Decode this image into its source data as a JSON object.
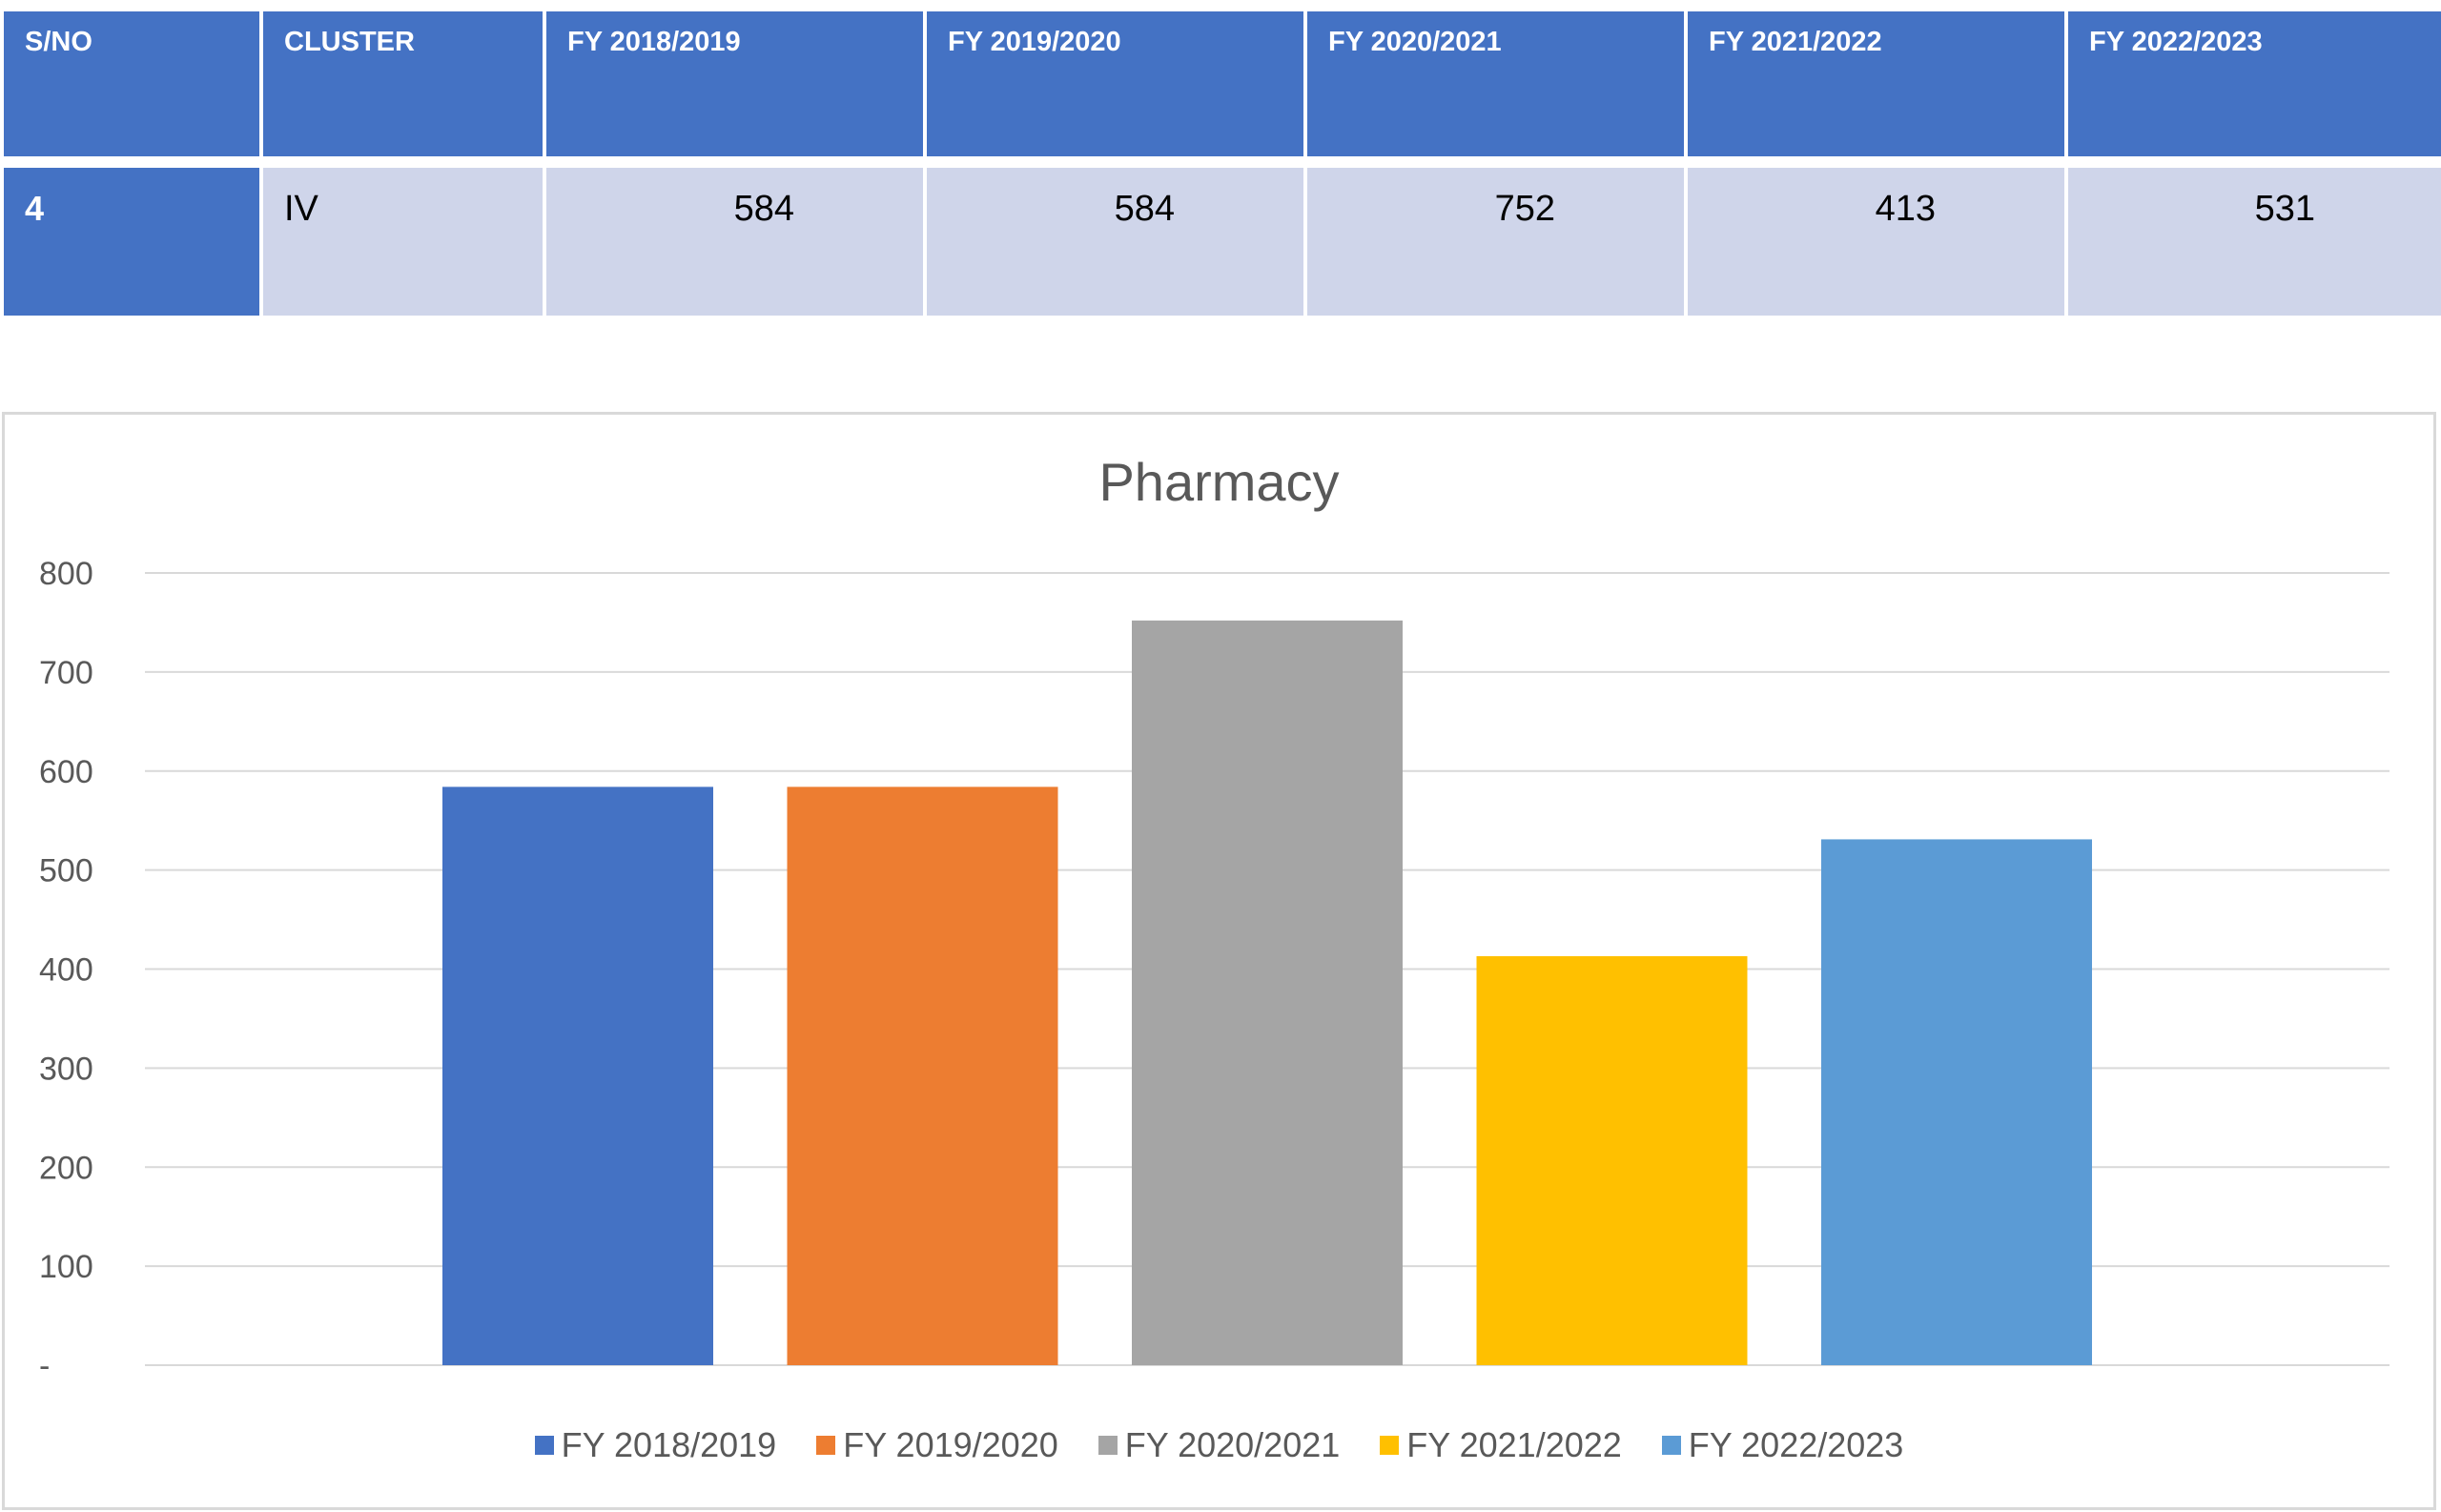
{
  "table": {
    "headers": [
      "S/NO",
      "CLUSTER",
      "FY 2018/2019",
      "FY 2019/2020",
      "FY 2020/2021",
      "FY 2021/2022",
      "FY 2022/2023"
    ],
    "row": {
      "sno": "4",
      "cluster": "IV",
      "values": [
        "584",
        "584",
        "752",
        "413",
        "531"
      ]
    }
  },
  "colors": {
    "header_bg": "#4472c4",
    "row_bg": "#cfd5ea",
    "series": [
      "#4472c4",
      "#ed7d31",
      "#a5a5a5",
      "#ffc000",
      "#5b9bd5"
    ]
  },
  "chart_data": {
    "type": "bar",
    "title": "Pharmacy",
    "series": [
      {
        "name": "FY 2018/2019",
        "values": [
          584
        ]
      },
      {
        "name": "FY 2019/2020",
        "values": [
          584
        ]
      },
      {
        "name": "FY 2020/2021",
        "values": [
          752
        ]
      },
      {
        "name": "FY 2021/2022",
        "values": [
          413
        ]
      },
      {
        "name": "FY 2022/2023",
        "values": [
          531
        ]
      }
    ],
    "categories": [
      ""
    ],
    "ylim": [
      0,
      800
    ],
    "yticks": [
      0,
      100,
      200,
      300,
      400,
      500,
      600,
      700,
      800
    ],
    "ytick_labels": [
      "-",
      "100",
      "200",
      "300",
      "400",
      "500",
      "600",
      "700",
      "800"
    ],
    "xlabel": "",
    "ylabel": "",
    "grid": true,
    "legend": "bottom"
  }
}
